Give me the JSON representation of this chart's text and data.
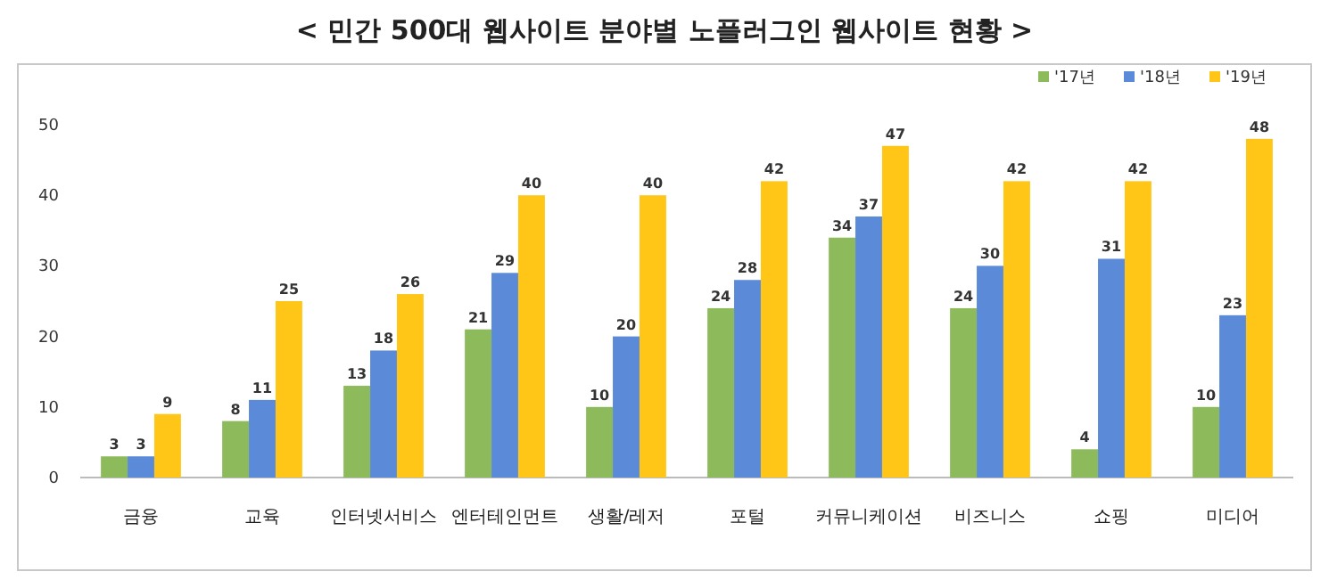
{
  "chart_data": {
    "type": "bar",
    "title": "< 민간 500대 웹사이트 분야별 노플러그인 웹사이트 현황 >",
    "categories": [
      "금융",
      "교육",
      "인터넷서비스",
      "엔터테인먼트",
      "생활/레저",
      "포털",
      "커뮤니케이션",
      "비즈니스",
      "쇼핑",
      "미디어"
    ],
    "series": [
      {
        "name": "'17년",
        "color": "#8dbb5c",
        "values": [
          3,
          8,
          13,
          21,
          10,
          24,
          34,
          24,
          4,
          10
        ]
      },
      {
        "name": "'18년",
        "color": "#5b8ad8",
        "values": [
          3,
          11,
          18,
          29,
          20,
          28,
          37,
          30,
          31,
          23
        ]
      },
      {
        "name": "'19년",
        "color": "#ffc617",
        "values": [
          9,
          25,
          26,
          40,
          40,
          42,
          47,
          42,
          42,
          48
        ]
      }
    ],
    "ylim": [
      0,
      50
    ],
    "yticks": [
      0,
      10,
      20,
      30,
      40,
      50
    ],
    "data_labels": true,
    "legend": "top right",
    "grid": false
  }
}
